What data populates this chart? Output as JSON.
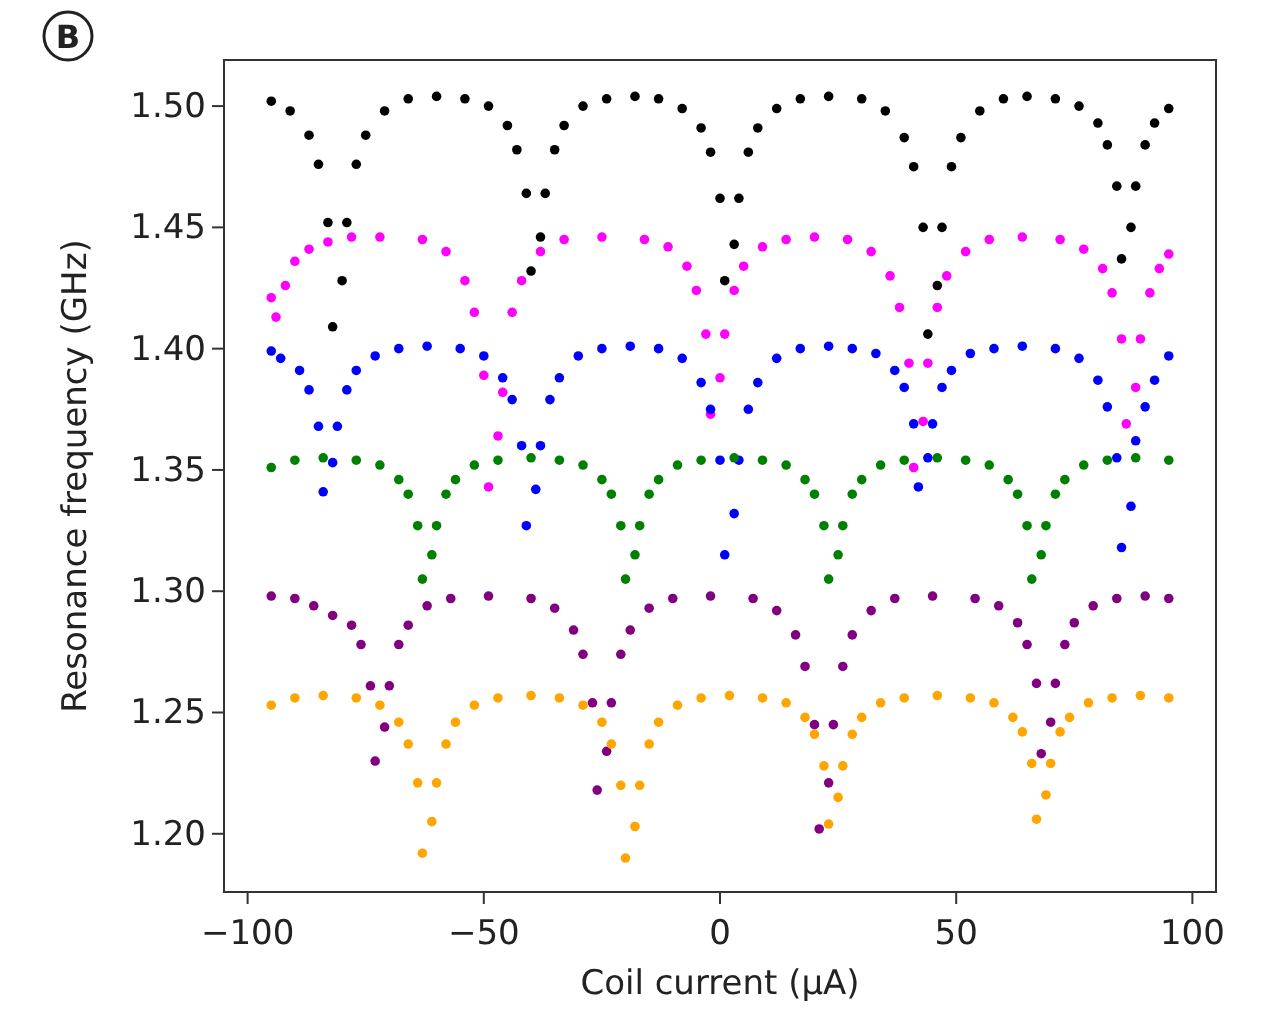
{
  "chart_data": {
    "type": "scatter",
    "xlabel": "Coil current (μA)",
    "ylabel": "Resonance frequency (GHz)",
    "annotations": [
      "B"
    ],
    "marker": "circle",
    "grid": false,
    "xlim": [
      -105,
      105
    ],
    "ylim": [
      1.176,
      1.519
    ],
    "xticks": [
      {
        "value": -100,
        "label": "−100"
      },
      {
        "value": -50,
        "label": "−50"
      },
      0,
      50,
      100
    ],
    "yticks": [
      {
        "value": 1.2,
        "label": "1.20"
      },
      1.25,
      {
        "value": 1.3,
        "label": "1.30"
      },
      1.35,
      {
        "value": 1.4,
        "label": "1.40"
      },
      1.45,
      {
        "value": 1.5,
        "label": "1.50"
      }
    ],
    "series": [
      {
        "color": "#000000",
        "x": [
          -95,
          -91,
          -87,
          -85,
          -83,
          -82,
          -80,
          -79,
          -77,
          -75,
          -71,
          -66,
          -60,
          -54,
          -49,
          -45,
          -43,
          -41,
          -40,
          -38,
          -37,
          -35,
          -33,
          -29,
          -24,
          -18,
          -13,
          -8,
          -4,
          -2,
          0,
          1,
          3,
          4,
          6,
          8,
          12,
          17,
          23,
          30,
          35,
          39,
          41,
          43,
          44,
          46,
          47,
          49,
          51,
          55,
          60,
          65,
          71,
          76,
          80,
          82,
          84,
          85,
          87,
          88,
          90,
          92,
          95
        ],
        "values": [
          1.502,
          1.498,
          1.488,
          1.476,
          1.452,
          1.409,
          1.428,
          1.452,
          1.476,
          1.488,
          1.498,
          1.503,
          1.504,
          1.503,
          1.5,
          1.492,
          1.482,
          1.464,
          1.432,
          1.446,
          1.464,
          1.482,
          1.492,
          1.5,
          1.503,
          1.504,
          1.503,
          1.499,
          1.491,
          1.481,
          1.462,
          1.428,
          1.443,
          1.462,
          1.481,
          1.491,
          1.499,
          1.503,
          1.504,
          1.503,
          1.498,
          1.487,
          1.475,
          1.45,
          1.406,
          1.426,
          1.45,
          1.475,
          1.487,
          1.498,
          1.503,
          1.504,
          1.503,
          1.5,
          1.493,
          1.484,
          1.467,
          1.437,
          1.45,
          1.467,
          1.484,
          1.493,
          1.499
        ]
      },
      {
        "color": "#ff00ff",
        "x": [
          -95,
          -94,
          -92,
          -90,
          -87,
          -83,
          -78,
          -72,
          -63,
          -58,
          -54,
          -52,
          -50,
          -49,
          -47,
          -46,
          -44,
          -42,
          -38,
          -33,
          -25,
          -16,
          -11,
          -7,
          -5,
          -3,
          -2,
          0,
          1,
          3,
          5,
          9,
          14,
          20,
          27,
          32,
          36,
          38,
          40,
          41,
          43,
          44,
          46,
          48,
          52,
          57,
          64,
          72,
          77,
          81,
          83,
          85,
          86,
          88,
          89,
          91,
          93,
          95
        ],
        "values": [
          1.421,
          1.413,
          1.426,
          1.436,
          1.441,
          1.444,
          1.446,
          1.446,
          1.445,
          1.44,
          1.428,
          1.415,
          1.389,
          1.343,
          1.364,
          1.382,
          1.415,
          1.428,
          1.44,
          1.445,
          1.446,
          1.445,
          1.442,
          1.434,
          1.424,
          1.406,
          1.373,
          1.388,
          1.406,
          1.424,
          1.434,
          1.442,
          1.445,
          1.446,
          1.445,
          1.44,
          1.43,
          1.417,
          1.394,
          1.351,
          1.37,
          1.394,
          1.417,
          1.43,
          1.44,
          1.445,
          1.446,
          1.445,
          1.441,
          1.433,
          1.423,
          1.404,
          1.369,
          1.384,
          1.404,
          1.423,
          1.433,
          1.439
        ]
      },
      {
        "color": "#0000ff",
        "x": [
          -95,
          -93,
          -89,
          -87,
          -85,
          -84,
          -82,
          -81,
          -79,
          -77,
          -73,
          -68,
          -62,
          -55,
          -50,
          -46,
          -44,
          -42,
          -41,
          -39,
          -38,
          -36,
          -34,
          -30,
          -25,
          -19,
          -13,
          -8,
          -4,
          -2,
          0,
          1,
          3,
          4,
          6,
          8,
          12,
          17,
          23,
          28,
          33,
          37,
          39,
          41,
          42,
          44,
          45,
          47,
          49,
          53,
          58,
          64,
          71,
          76,
          80,
          82,
          84,
          85,
          87,
          88,
          90,
          92,
          95
        ],
        "values": [
          1.399,
          1.396,
          1.391,
          1.383,
          1.368,
          1.341,
          1.353,
          1.368,
          1.383,
          1.391,
          1.397,
          1.4,
          1.401,
          1.4,
          1.397,
          1.388,
          1.379,
          1.36,
          1.327,
          1.342,
          1.36,
          1.379,
          1.388,
          1.397,
          1.4,
          1.401,
          1.4,
          1.396,
          1.386,
          1.375,
          1.354,
          1.315,
          1.332,
          1.354,
          1.375,
          1.386,
          1.396,
          1.4,
          1.401,
          1.4,
          1.398,
          1.391,
          1.384,
          1.369,
          1.343,
          1.355,
          1.369,
          1.384,
          1.391,
          1.398,
          1.4,
          1.401,
          1.4,
          1.396,
          1.387,
          1.376,
          1.355,
          1.318,
          1.335,
          1.362,
          1.376,
          1.387,
          1.397
        ]
      },
      {
        "color": "#008000",
        "x": [
          -95,
          -90,
          -84,
          -77,
          -72,
          -68,
          -66,
          -64,
          -63,
          -61,
          -60,
          -58,
          -56,
          -52,
          -47,
          -40,
          -34,
          -29,
          -25,
          -23,
          -21,
          -20,
          -18,
          -17,
          -15,
          -13,
          -9,
          -4,
          3,
          9,
          14,
          18,
          20,
          22,
          23,
          25,
          26,
          28,
          30,
          34,
          39,
          46,
          52,
          57,
          61,
          63,
          65,
          66,
          68,
          69,
          71,
          73,
          77,
          82,
          88,
          95
        ],
        "values": [
          1.351,
          1.354,
          1.355,
          1.354,
          1.352,
          1.346,
          1.34,
          1.327,
          1.305,
          1.315,
          1.327,
          1.34,
          1.346,
          1.352,
          1.354,
          1.355,
          1.354,
          1.352,
          1.346,
          1.34,
          1.327,
          1.305,
          1.315,
          1.327,
          1.34,
          1.346,
          1.352,
          1.354,
          1.355,
          1.354,
          1.352,
          1.346,
          1.34,
          1.327,
          1.305,
          1.315,
          1.327,
          1.34,
          1.346,
          1.352,
          1.354,
          1.355,
          1.354,
          1.352,
          1.346,
          1.34,
          1.327,
          1.305,
          1.315,
          1.327,
          1.34,
          1.346,
          1.352,
          1.354,
          1.355,
          1.354
        ]
      },
      {
        "color": "#800080",
        "x": [
          -95,
          -90,
          -86,
          -82,
          -78,
          -76,
          -74,
          -73,
          -71,
          -70,
          -68,
          -66,
          -62,
          -57,
          -49,
          -40,
          -35,
          -31,
          -29,
          -27,
          -26,
          -24,
          -23,
          -21,
          -19,
          -15,
          -10,
          -2,
          7,
          12,
          16,
          18,
          20,
          21,
          23,
          24,
          26,
          28,
          32,
          37,
          45,
          54,
          59,
          63,
          65,
          67,
          68,
          70,
          71,
          73,
          75,
          79,
          84,
          90,
          95
        ],
        "values": [
          1.298,
          1.297,
          1.294,
          1.29,
          1.286,
          1.278,
          1.261,
          1.23,
          1.244,
          1.261,
          1.278,
          1.286,
          1.294,
          1.297,
          1.298,
          1.297,
          1.293,
          1.284,
          1.274,
          1.254,
          1.218,
          1.234,
          1.254,
          1.274,
          1.284,
          1.293,
          1.297,
          1.298,
          1.297,
          1.292,
          1.282,
          1.269,
          1.245,
          1.202,
          1.221,
          1.245,
          1.269,
          1.282,
          1.292,
          1.297,
          1.298,
          1.297,
          1.294,
          1.287,
          1.278,
          1.262,
          1.233,
          1.246,
          1.262,
          1.278,
          1.287,
          1.294,
          1.297,
          1.298,
          1.297
        ]
      },
      {
        "color": "#ffa500",
        "x": [
          -95,
          -90,
          -84,
          -77,
          -72,
          -68,
          -66,
          -64,
          -63,
          -61,
          -60,
          -58,
          -56,
          -52,
          -47,
          -40,
          -34,
          -29,
          -25,
          -23,
          -21,
          -20,
          -18,
          -17,
          -15,
          -13,
          -9,
          -4,
          2,
          9,
          14,
          18,
          20,
          22,
          23,
          25,
          26,
          28,
          30,
          34,
          39,
          46,
          53,
          58,
          62,
          64,
          66,
          67,
          69,
          70,
          72,
          74,
          78,
          83,
          89,
          95
        ],
        "values": [
          1.253,
          1.256,
          1.257,
          1.256,
          1.253,
          1.246,
          1.237,
          1.221,
          1.192,
          1.205,
          1.221,
          1.237,
          1.246,
          1.253,
          1.256,
          1.257,
          1.256,
          1.253,
          1.246,
          1.237,
          1.22,
          1.19,
          1.203,
          1.22,
          1.237,
          1.246,
          1.253,
          1.256,
          1.257,
          1.256,
          1.254,
          1.248,
          1.241,
          1.228,
          1.204,
          1.215,
          1.228,
          1.241,
          1.248,
          1.254,
          1.256,
          1.257,
          1.256,
          1.254,
          1.248,
          1.242,
          1.229,
          1.206,
          1.216,
          1.229,
          1.242,
          1.248,
          1.254,
          1.256,
          1.257,
          1.256
        ]
      }
    ]
  }
}
